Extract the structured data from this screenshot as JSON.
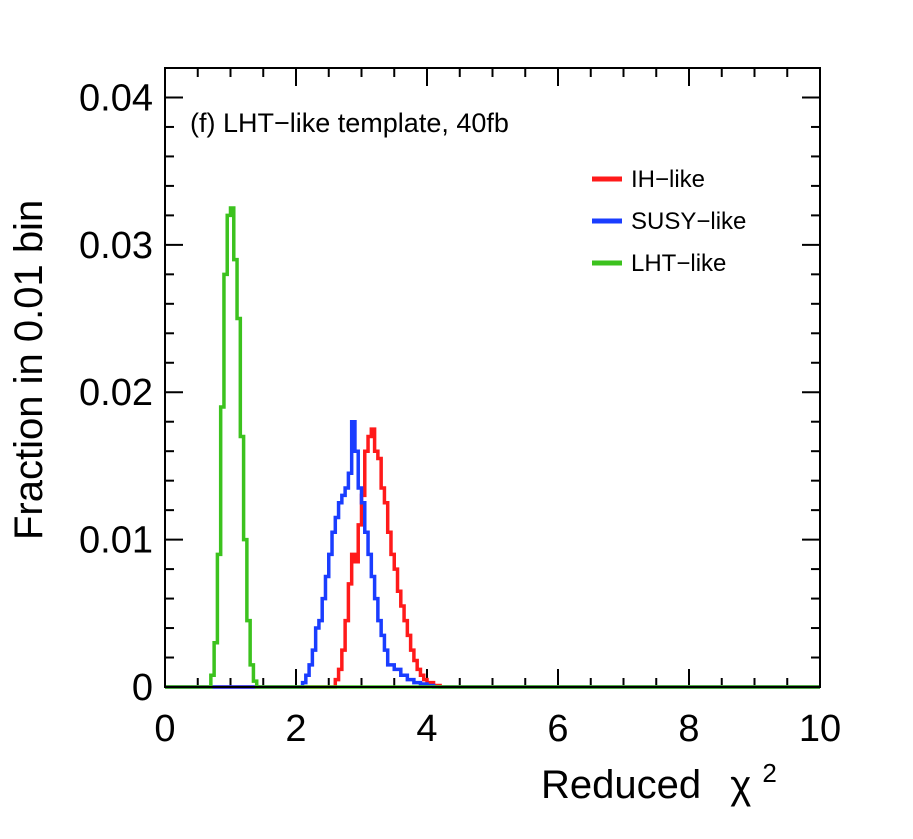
{
  "chart_data": {
    "type": "line",
    "title": "(f) LHT−like template, 40fb",
    "xlabel": "Reduced",
    "xlabel_symbol": "χ",
    "xlabel_superscript": "2",
    "ylabel": "Fraction in 0.01 bin",
    "xlim": [
      0,
      10
    ],
    "ylim": [
      0,
      0.042
    ],
    "x_ticks": [
      0,
      2,
      4,
      6,
      8,
      10
    ],
    "x_tick_labels": [
      "0",
      "2",
      "4",
      "6",
      "8",
      "10"
    ],
    "y_ticks": [
      0,
      0.01,
      0.02,
      0.03,
      0.04
    ],
    "y_tick_labels": [
      "0",
      "0.01",
      "0.02",
      "0.03",
      "0.04"
    ],
    "grid": false,
    "legend_position": "top-right",
    "series": [
      {
        "name": "IH−like",
        "color": "#ff1a1a",
        "x": [
          0,
          2.5,
          2.6,
          2.65,
          2.7,
          2.75,
          2.8,
          2.85,
          2.9,
          2.95,
          3.0,
          3.05,
          3.1,
          3.15,
          3.2,
          3.25,
          3.3,
          3.35,
          3.4,
          3.45,
          3.5,
          3.55,
          3.6,
          3.65,
          3.7,
          3.75,
          3.8,
          3.85,
          3.9,
          3.95,
          4.0,
          4.1,
          4.2,
          10
        ],
        "y": [
          0,
          0,
          0.0005,
          0.0012,
          0.0025,
          0.0045,
          0.007,
          0.009,
          0.0085,
          0.011,
          0.013,
          0.016,
          0.017,
          0.0175,
          0.016,
          0.0155,
          0.0135,
          0.0125,
          0.0105,
          0.009,
          0.008,
          0.0065,
          0.0055,
          0.0045,
          0.0035,
          0.0025,
          0.0018,
          0.0012,
          0.0008,
          0.0005,
          0.0003,
          0.0001,
          0,
          0
        ]
      },
      {
        "name": "SUSY−like",
        "color": "#1a3dff",
        "x": [
          0,
          2.0,
          2.1,
          2.15,
          2.2,
          2.25,
          2.3,
          2.35,
          2.4,
          2.45,
          2.5,
          2.55,
          2.6,
          2.65,
          2.7,
          2.75,
          2.8,
          2.85,
          2.9,
          2.95,
          3.0,
          3.05,
          3.1,
          3.15,
          3.2,
          3.25,
          3.3,
          3.35,
          3.4,
          3.5,
          3.6,
          3.7,
          3.8,
          3.9,
          4.0,
          4.1,
          10
        ],
        "y": [
          0,
          0,
          0.0003,
          0.0008,
          0.0015,
          0.0025,
          0.004,
          0.0045,
          0.006,
          0.0075,
          0.009,
          0.0105,
          0.0115,
          0.0125,
          0.013,
          0.0135,
          0.0145,
          0.018,
          0.016,
          0.0135,
          0.0125,
          0.0105,
          0.009,
          0.0075,
          0.006,
          0.0045,
          0.0035,
          0.0025,
          0.0015,
          0.0012,
          0.0008,
          0.0005,
          0.0003,
          0.0002,
          0.0001,
          0,
          0
        ]
      },
      {
        "name": "LHT−like",
        "color": "#3cc21e",
        "x": [
          0,
          0.6,
          0.7,
          0.75,
          0.8,
          0.85,
          0.9,
          0.95,
          1.0,
          1.05,
          1.1,
          1.15,
          1.2,
          1.25,
          1.3,
          1.35,
          1.4,
          10
        ],
        "y": [
          0,
          0,
          0.0008,
          0.003,
          0.009,
          0.019,
          0.028,
          0.032,
          0.0325,
          0.029,
          0.025,
          0.017,
          0.01,
          0.0045,
          0.0015,
          0.0004,
          0,
          0
        ]
      }
    ]
  }
}
